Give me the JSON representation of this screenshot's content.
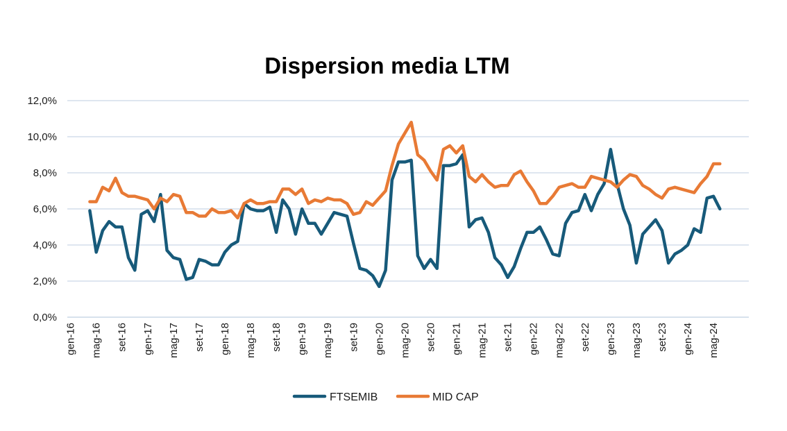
{
  "chart_data": {
    "type": "line",
    "title": "Dispersion media LTM",
    "xlabel": "",
    "ylabel": "",
    "ylim": [
      0,
      12
    ],
    "y_ticks": [
      "0,0%",
      "2,0%",
      "4,0%",
      "6,0%",
      "8,0%",
      "10,0%",
      "12,0%"
    ],
    "x_ticks": [
      {
        "label": "gen-16",
        "month": 0
      },
      {
        "label": "mag-16",
        "month": 4
      },
      {
        "label": "set-16",
        "month": 8
      },
      {
        "label": "gen-17",
        "month": 12
      },
      {
        "label": "mag-17",
        "month": 16
      },
      {
        "label": "set-17",
        "month": 20
      },
      {
        "label": "gen-18",
        "month": 24
      },
      {
        "label": "mag-18",
        "month": 28
      },
      {
        "label": "set-18",
        "month": 32
      },
      {
        "label": "gen-19",
        "month": 36
      },
      {
        "label": "mag-19",
        "month": 40
      },
      {
        "label": "set-19",
        "month": 44
      },
      {
        "label": "gen-20",
        "month": 48
      },
      {
        "label": "mag-20",
        "month": 52
      },
      {
        "label": "set-20",
        "month": 56
      },
      {
        "label": "gen-21",
        "month": 60
      },
      {
        "label": "mag-21",
        "month": 64
      },
      {
        "label": "set-21",
        "month": 68
      },
      {
        "label": "gen-22",
        "month": 72
      },
      {
        "label": "mag-22",
        "month": 76
      },
      {
        "label": "set-22",
        "month": 80
      },
      {
        "label": "gen-23",
        "month": 84
      },
      {
        "label": "mag-23",
        "month": 88
      },
      {
        "label": "set-23",
        "month": 92
      },
      {
        "label": "gen-24",
        "month": 96
      },
      {
        "label": "mag-24",
        "month": 100
      }
    ],
    "month_count": 106,
    "first_data_month": 3,
    "grid": true,
    "legend_position": "bottom",
    "series": [
      {
        "name": "FTSEMIB",
        "color": "#175a7a",
        "values": [
          5.9,
          3.6,
          4.8,
          5.3,
          5.0,
          5.0,
          3.3,
          2.6,
          5.7,
          5.9,
          5.3,
          6.8,
          3.7,
          3.3,
          3.2,
          2.1,
          2.2,
          3.2,
          3.1,
          2.9,
          2.9,
          3.6,
          4.0,
          4.2,
          6.3,
          6.0,
          5.9,
          5.9,
          6.1,
          4.7,
          6.5,
          6.0,
          4.6,
          6.0,
          5.2,
          5.2,
          4.6,
          5.2,
          5.8,
          5.7,
          5.6,
          4.1,
          2.7,
          2.6,
          2.3,
          1.7,
          2.6,
          7.6,
          8.6,
          8.6,
          8.7,
          3.4,
          2.7,
          3.2,
          2.7,
          8.4,
          8.4,
          8.5,
          9.0,
          5.0,
          5.4,
          5.5,
          4.7,
          3.3,
          2.9,
          2.2,
          2.8,
          3.8,
          4.7,
          4.7,
          5.0,
          4.3,
          3.5,
          3.4,
          5.2,
          5.8,
          5.9,
          6.8,
          5.9,
          6.8,
          7.4,
          9.3,
          7.4,
          6.0,
          5.1,
          3.0,
          4.6,
          5.0,
          5.4,
          4.8,
          3.0,
          3.5,
          3.7,
          4.0,
          4.9,
          4.7,
          6.6,
          6.7,
          6.0
        ]
      },
      {
        "name": "MID CAP",
        "color": "#e87a35",
        "values": [
          6.4,
          6.4,
          7.2,
          7.0,
          7.7,
          6.9,
          6.7,
          6.7,
          6.6,
          6.5,
          6.0,
          6.6,
          6.4,
          6.8,
          6.7,
          5.8,
          5.8,
          5.6,
          5.6,
          6.0,
          5.8,
          5.8,
          5.9,
          5.5,
          6.3,
          6.5,
          6.3,
          6.3,
          6.4,
          6.4,
          7.1,
          7.1,
          6.8,
          7.1,
          6.3,
          6.5,
          6.4,
          6.6,
          6.5,
          6.5,
          6.3,
          5.7,
          5.8,
          6.4,
          6.2,
          6.6,
          7.0,
          8.4,
          9.6,
          10.2,
          10.8,
          9.0,
          8.7,
          8.1,
          7.6,
          9.3,
          9.5,
          9.1,
          9.5,
          7.8,
          7.5,
          7.9,
          7.5,
          7.2,
          7.3,
          7.3,
          7.9,
          8.1,
          7.5,
          7.0,
          6.3,
          6.3,
          6.7,
          7.2,
          7.3,
          7.4,
          7.2,
          7.2,
          7.8,
          7.7,
          7.6,
          7.5,
          7.2,
          7.6,
          7.9,
          7.8,
          7.3,
          7.1,
          6.8,
          6.6,
          7.1,
          7.2,
          7.1,
          7.0,
          6.9,
          7.4,
          7.8,
          8.5,
          8.5
        ]
      }
    ]
  }
}
